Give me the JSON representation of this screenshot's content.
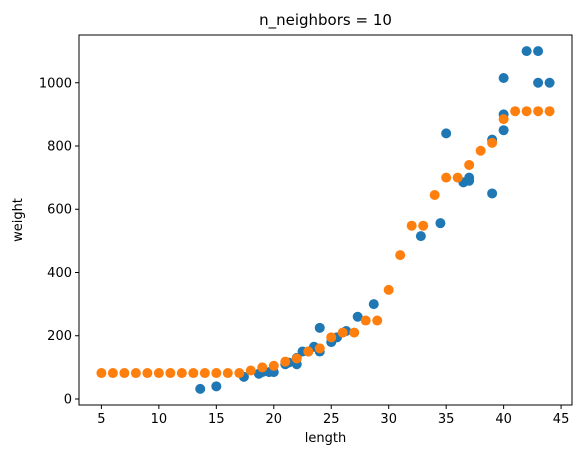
{
  "chart_data": {
    "type": "scatter",
    "title": "n_neighbors = 10",
    "xlabel": "length",
    "ylabel": "weight",
    "xlim": [
      3.05,
      45.95
    ],
    "ylim": [
      -19,
      1151
    ],
    "x_ticks": [
      5,
      10,
      15,
      20,
      25,
      30,
      35,
      40,
      45
    ],
    "y_ticks": [
      0,
      200,
      400,
      600,
      800,
      1000
    ],
    "grid": false,
    "legend": "none",
    "series": [
      {
        "color": "#1f77b4",
        "points": [
          [
            13.6,
            32
          ],
          [
            15.0,
            40
          ],
          [
            17.4,
            70
          ],
          [
            18.7,
            80
          ],
          [
            19.0,
            85
          ],
          [
            19.6,
            85
          ],
          [
            20.0,
            85
          ],
          [
            21.0,
            110
          ],
          [
            21.3,
            115
          ],
          [
            22.0,
            110
          ],
          [
            22.0,
            130
          ],
          [
            22.5,
            150
          ],
          [
            23.0,
            150
          ],
          [
            23.5,
            165
          ],
          [
            24.0,
            150
          ],
          [
            24.0,
            225
          ],
          [
            25.0,
            180
          ],
          [
            25.5,
            195
          ],
          [
            26.3,
            215
          ],
          [
            27.3,
            260
          ],
          [
            28.7,
            300
          ],
          [
            32.8,
            515
          ],
          [
            34.5,
            556
          ],
          [
            35.0,
            840
          ],
          [
            36.5,
            685
          ],
          [
            37.0,
            690
          ],
          [
            37.0,
            700
          ],
          [
            39.0,
            650
          ],
          [
            39.0,
            820
          ],
          [
            40.0,
            850
          ],
          [
            40.0,
            900
          ],
          [
            40.0,
            1015
          ],
          [
            42.0,
            1100
          ],
          [
            43.0,
            1100
          ],
          [
            43.0,
            1000
          ],
          [
            44.0,
            1000
          ]
        ]
      },
      {
        "color": "#ff7f0e",
        "points": [
          [
            5,
            82
          ],
          [
            6,
            82
          ],
          [
            7,
            82
          ],
          [
            8,
            82
          ],
          [
            9,
            82
          ],
          [
            10,
            82
          ],
          [
            11,
            82
          ],
          [
            12,
            82
          ],
          [
            13,
            82
          ],
          [
            14,
            82
          ],
          [
            15,
            82
          ],
          [
            16,
            82
          ],
          [
            17,
            82
          ],
          [
            18,
            90
          ],
          [
            19,
            100
          ],
          [
            20,
            105
          ],
          [
            21,
            118
          ],
          [
            22,
            128
          ],
          [
            23,
            150
          ],
          [
            24,
            160
          ],
          [
            25,
            195
          ],
          [
            26,
            210
          ],
          [
            27,
            210
          ],
          [
            28,
            248
          ],
          [
            29,
            248
          ],
          [
            30,
            345
          ],
          [
            31,
            455
          ],
          [
            32,
            548
          ],
          [
            33,
            548
          ],
          [
            34,
            645
          ],
          [
            35,
            700
          ],
          [
            36,
            700
          ],
          [
            37,
            740
          ],
          [
            38,
            785
          ],
          [
            39,
            810
          ],
          [
            40,
            885
          ],
          [
            41,
            910
          ],
          [
            42,
            910
          ],
          [
            43,
            910
          ],
          [
            44,
            910
          ]
        ]
      }
    ]
  }
}
